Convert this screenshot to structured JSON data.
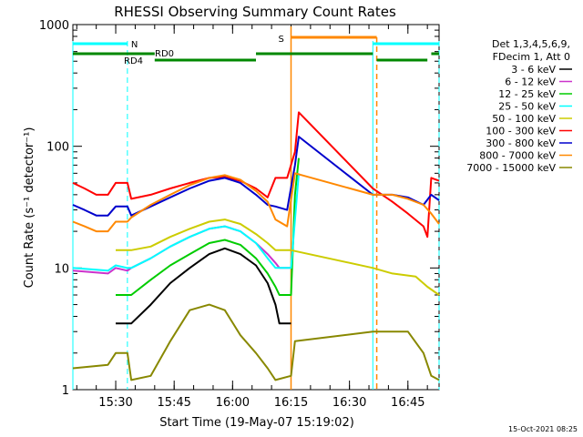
{
  "chart_data": {
    "type": "line",
    "title": "RHESSI Observing Summary Count Rates",
    "xlabel": "Start Time (19-May-07 15:19:02)",
    "ylabel": "Count Rate (s⁻¹ detector⁻¹)",
    "yscale": "log",
    "ylim": [
      1,
      1000
    ],
    "xlim_minutes_since_15_19": [
      0,
      94
    ],
    "x_ticks": [
      {
        "label": "15:30",
        "t": 11
      },
      {
        "label": "15:45",
        "t": 26
      },
      {
        "label": "16:00",
        "t": 41
      },
      {
        "label": "16:15",
        "t": 56
      },
      {
        "label": "16:30",
        "t": 71
      },
      {
        "label": "16:45",
        "t": 86
      }
    ],
    "y_ticks": [
      {
        "label": "1",
        "v": 1
      },
      {
        "label": "10",
        "v": 10
      },
      {
        "label": "100",
        "v": 100
      },
      {
        "label": "1000",
        "v": 1000
      }
    ],
    "legend": {
      "placement": "right",
      "header": [
        "Det 1,3,4,5,6,9,",
        "FDecim 1, Att 0"
      ],
      "entries": [
        {
          "label": "3 - 6 keV",
          "color": "#000000"
        },
        {
          "label": "6 - 12 keV",
          "color": "#cc33cc"
        },
        {
          "label": "12 - 25 keV",
          "color": "#00cc00"
        },
        {
          "label": "25 - 50 keV",
          "color": "#00ffff"
        },
        {
          "label": "50 - 100 keV",
          "color": "#cccc00"
        },
        {
          "label": "100 - 300 keV",
          "color": "#ff0000"
        },
        {
          "label": "300 - 800 keV",
          "color": "#0000cc"
        },
        {
          "label": "800 - 7000 keV",
          "color": "#ff8800"
        },
        {
          "label": "7000 - 15000 keV",
          "color": "#888800"
        }
      ]
    },
    "flags": [
      {
        "label": "N",
        "color": "#00ffff"
      },
      {
        "label": "RD4",
        "color": "#008800"
      },
      {
        "label": "RD0",
        "color": "#008800"
      },
      {
        "label": "S",
        "color": "#ff8800"
      }
    ],
    "night_boundaries_minutes": [
      0,
      14,
      77,
      94
    ],
    "saa_minutes": [
      56,
      78
    ],
    "series": [
      {
        "name": "3 - 6 keV",
        "color": "#000000",
        "points": [
          [
            11,
            3.5
          ],
          [
            14,
            3.5
          ],
          [
            15,
            3.5
          ],
          [
            20,
            5
          ],
          [
            25,
            7.5
          ],
          [
            30,
            10
          ],
          [
            35,
            13
          ],
          [
            39,
            14.5
          ],
          [
            43,
            13
          ],
          [
            47,
            10.5
          ],
          [
            50,
            7.5
          ],
          [
            52,
            5
          ],
          [
            53,
            3.5
          ],
          [
            56,
            3.5
          ]
        ]
      },
      {
        "name": "6 - 12 keV",
        "color": "#cc33cc",
        "points": [
          [
            0,
            9.5
          ],
          [
            9,
            9
          ],
          [
            11,
            10
          ],
          [
            14,
            9.5
          ],
          [
            15,
            10
          ],
          [
            20,
            12
          ],
          [
            25,
            15
          ],
          [
            30,
            18
          ],
          [
            35,
            21
          ],
          [
            39,
            22
          ],
          [
            43,
            20
          ],
          [
            47,
            16
          ],
          [
            50,
            13
          ],
          [
            52,
            11
          ],
          [
            53,
            10
          ],
          [
            56,
            10
          ]
        ]
      },
      {
        "name": "12 - 25 keV",
        "color": "#00cc00",
        "points": [
          [
            11,
            6
          ],
          [
            14,
            6
          ],
          [
            15,
            6
          ],
          [
            20,
            8
          ],
          [
            25,
            10.5
          ],
          [
            30,
            13
          ],
          [
            35,
            16
          ],
          [
            39,
            17
          ],
          [
            43,
            15.5
          ],
          [
            47,
            12
          ],
          [
            50,
            9
          ],
          [
            52,
            7
          ],
          [
            53,
            6
          ],
          [
            56,
            6
          ],
          [
            57,
            40
          ],
          [
            58,
            80
          ]
        ]
      },
      {
        "name": "25 - 50 keV",
        "color": "#00ffff",
        "points": [
          [
            0,
            10
          ],
          [
            9,
            9.5
          ],
          [
            11,
            10.5
          ],
          [
            14,
            10
          ],
          [
            15,
            10
          ],
          [
            20,
            12
          ],
          [
            25,
            15
          ],
          [
            30,
            18
          ],
          [
            35,
            21
          ],
          [
            39,
            22
          ],
          [
            43,
            20
          ],
          [
            47,
            16
          ],
          [
            50,
            12
          ],
          [
            52,
            10
          ],
          [
            53,
            10
          ],
          [
            56,
            10
          ],
          [
            58,
            60
          ]
        ]
      },
      {
        "name": "50 - 100 keV",
        "color": "#cccc00",
        "points": [
          [
            11,
            14
          ],
          [
            14,
            14
          ],
          [
            15,
            14
          ],
          [
            20,
            15
          ],
          [
            25,
            18
          ],
          [
            30,
            21
          ],
          [
            35,
            24
          ],
          [
            39,
            25
          ],
          [
            43,
            23
          ],
          [
            47,
            19
          ],
          [
            50,
            16
          ],
          [
            52,
            14
          ],
          [
            53,
            14
          ],
          [
            56,
            14
          ],
          [
            77,
            10
          ],
          [
            82,
            9
          ],
          [
            88,
            8.5
          ],
          [
            91,
            7
          ],
          [
            94,
            6
          ]
        ]
      },
      {
        "name": "100 - 300 keV",
        "color": "#ff0000",
        "points": [
          [
            0,
            50
          ],
          [
            3,
            45
          ],
          [
            6,
            40
          ],
          [
            9,
            40
          ],
          [
            11,
            50
          ],
          [
            14,
            50
          ],
          [
            15,
            37
          ],
          [
            20,
            40
          ],
          [
            25,
            45
          ],
          [
            30,
            50
          ],
          [
            35,
            55
          ],
          [
            39,
            56
          ],
          [
            43,
            52
          ],
          [
            47,
            45
          ],
          [
            50,
            38
          ],
          [
            52,
            55
          ],
          [
            55,
            55
          ],
          [
            57,
            90
          ],
          [
            58,
            190
          ],
          [
            77,
            45
          ],
          [
            82,
            35
          ],
          [
            86,
            28
          ],
          [
            90,
            22
          ],
          [
            91,
            18
          ],
          [
            92,
            55
          ],
          [
            94,
            52
          ]
        ]
      },
      {
        "name": "300 - 800 keV",
        "color": "#0000cc",
        "points": [
          [
            0,
            33
          ],
          [
            3,
            30
          ],
          [
            6,
            27
          ],
          [
            9,
            27
          ],
          [
            11,
            32
          ],
          [
            14,
            32
          ],
          [
            15,
            27
          ],
          [
            20,
            32
          ],
          [
            25,
            38
          ],
          [
            30,
            45
          ],
          [
            35,
            52
          ],
          [
            39,
            55
          ],
          [
            43,
            50
          ],
          [
            47,
            40
          ],
          [
            50,
            33
          ],
          [
            52,
            32
          ],
          [
            55,
            30
          ],
          [
            57,
            70
          ],
          [
            58,
            120
          ],
          [
            77,
            40
          ],
          [
            82,
            40
          ],
          [
            86,
            38
          ],
          [
            90,
            33
          ],
          [
            92,
            40
          ],
          [
            94,
            36
          ]
        ]
      },
      {
        "name": "800 - 7000 keV",
        "color": "#ff8800",
        "points": [
          [
            0,
            24
          ],
          [
            3,
            22
          ],
          [
            6,
            20
          ],
          [
            9,
            20
          ],
          [
            11,
            24
          ],
          [
            14,
            24
          ],
          [
            15,
            26
          ],
          [
            20,
            33
          ],
          [
            25,
            40
          ],
          [
            30,
            48
          ],
          [
            35,
            55
          ],
          [
            39,
            58
          ],
          [
            43,
            53
          ],
          [
            47,
            43
          ],
          [
            50,
            35
          ],
          [
            52,
            25
          ],
          [
            55,
            22
          ],
          [
            57,
            60
          ],
          [
            77,
            40
          ],
          [
            82,
            40
          ],
          [
            86,
            37
          ],
          [
            90,
            33
          ],
          [
            92,
            28
          ],
          [
            94,
            23
          ]
        ]
      },
      {
        "name": "7000 - 15000 keV",
        "color": "#888800",
        "points": [
          [
            0,
            1.5
          ],
          [
            9,
            1.6
          ],
          [
            11,
            2
          ],
          [
            14,
            2
          ],
          [
            15,
            1.2
          ],
          [
            20,
            1.3
          ],
          [
            25,
            2.5
          ],
          [
            30,
            4.5
          ],
          [
            35,
            5
          ],
          [
            39,
            4.5
          ],
          [
            43,
            2.8
          ],
          [
            47,
            2
          ],
          [
            50,
            1.5
          ],
          [
            52,
            1.2
          ],
          [
            56,
            1.3
          ],
          [
            57,
            2.5
          ],
          [
            77,
            3
          ],
          [
            82,
            3
          ],
          [
            86,
            3
          ],
          [
            90,
            2
          ],
          [
            92,
            1.3
          ],
          [
            94,
            1.2
          ]
        ]
      }
    ]
  },
  "footer": {
    "timestamp": "15-Oct-2021 08:25"
  }
}
